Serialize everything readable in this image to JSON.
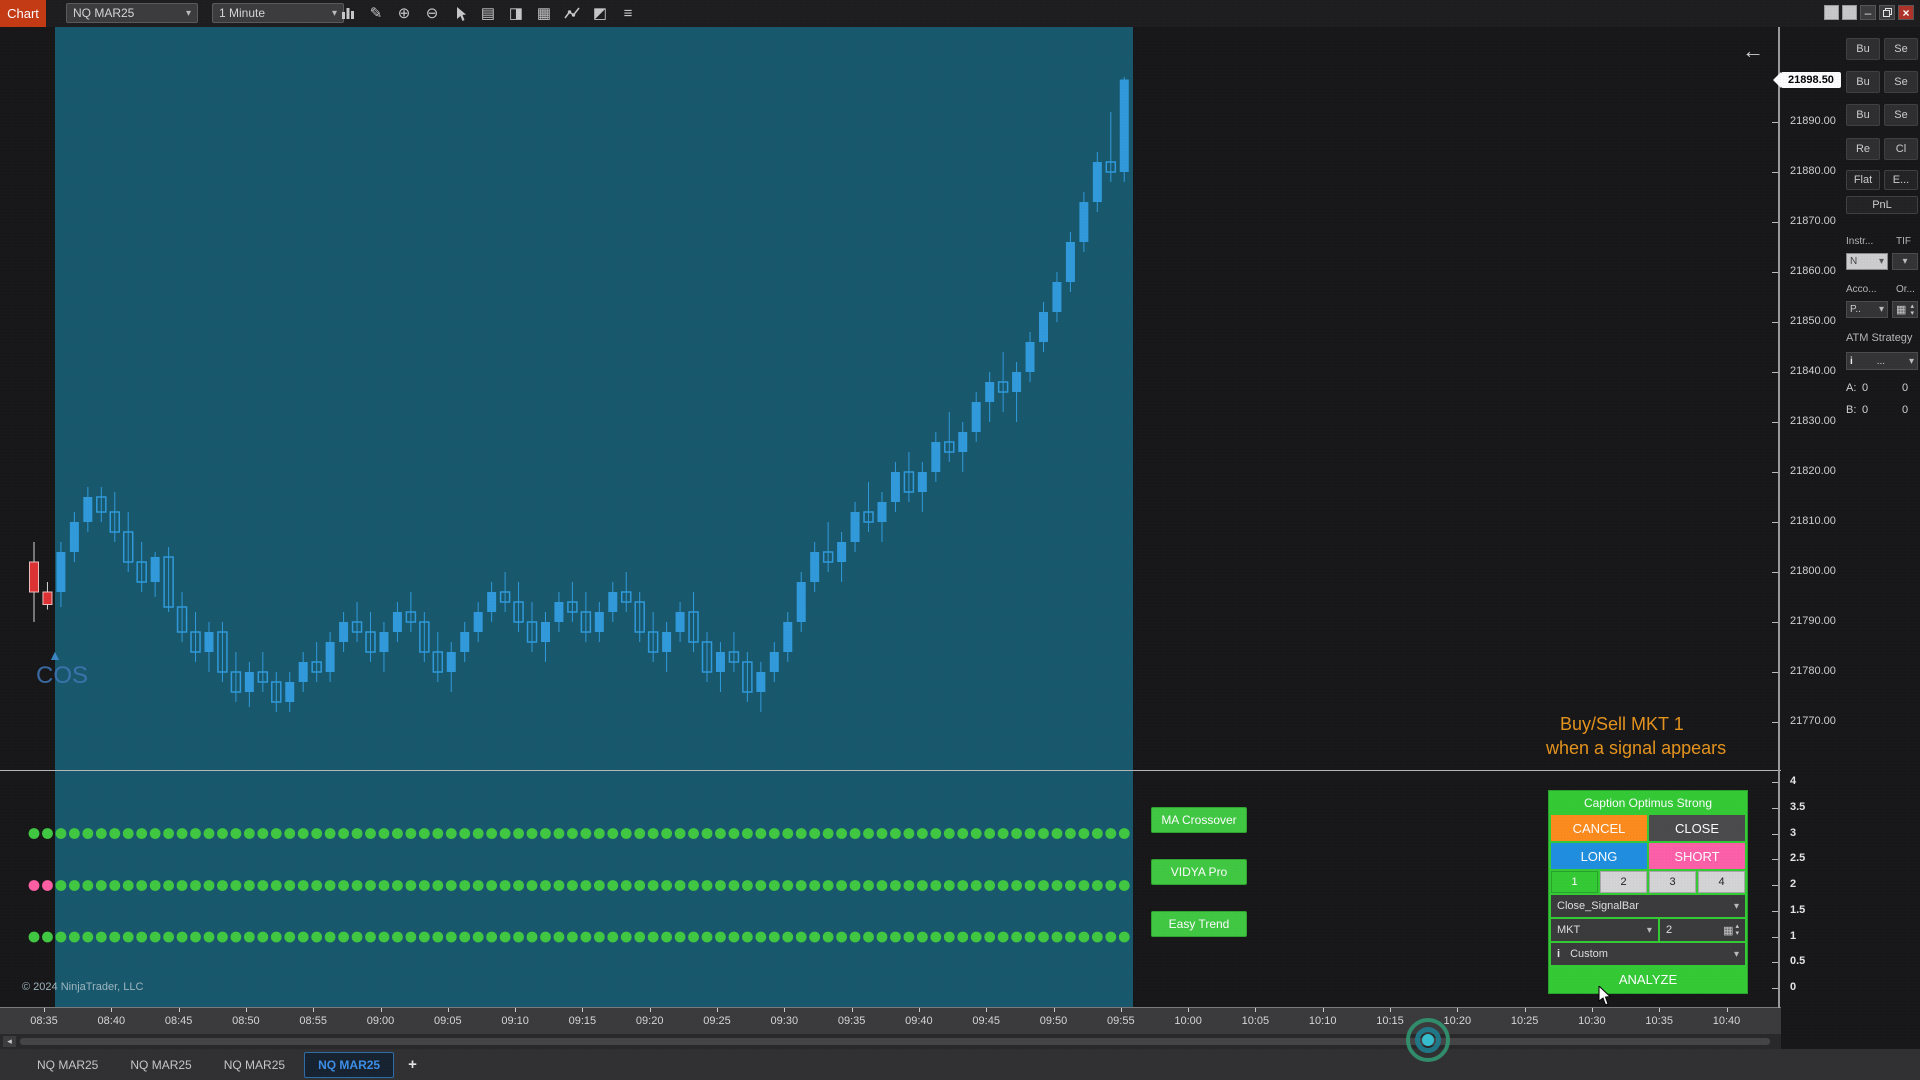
{
  "titlebar": {
    "chart_label": "Chart",
    "instrument_value": "NQ MAR25",
    "interval_value": "1 Minute",
    "icons": [
      {
        "name": "chart-style-icon",
        "glyph": ""
      },
      {
        "name": "drawing-tools-icon",
        "glyph": "✎"
      },
      {
        "name": "zoom-in-icon",
        "glyph": "⊕"
      },
      {
        "name": "zoom-out-icon",
        "glyph": "⊖"
      },
      {
        "name": "cursor-icon",
        "glyph": ""
      },
      {
        "name": "data-box-icon",
        "glyph": "▤"
      },
      {
        "name": "tag-icon",
        "glyph": "◨"
      },
      {
        "name": "chart-trader-icon",
        "glyph": "▦"
      },
      {
        "name": "regression-icon",
        "glyph": ""
      },
      {
        "name": "analyzer-icon",
        "glyph": "◩"
      },
      {
        "name": "indicators-list-icon",
        "glyph": "≡"
      }
    ],
    "window": {
      "minimize": "–",
      "close": "×"
    }
  },
  "price_axis": {
    "last_price": "21898.50",
    "labels": [
      "21890.00",
      "21880.00",
      "21870.00",
      "21860.00",
      "21850.00",
      "21840.00",
      "21830.00",
      "21820.00",
      "21810.00",
      "21800.00",
      "21790.00",
      "21780.00",
      "21770.00"
    ]
  },
  "indicator_axis": {
    "labels": [
      "4",
      "3.5",
      "3",
      "2.5",
      "2",
      "1.5",
      "1",
      "0.5",
      "0"
    ]
  },
  "time_axis": {
    "labels": [
      "08:35",
      "08:40",
      "08:45",
      "08:50",
      "08:55",
      "09:00",
      "09:05",
      "09:10",
      "09:15",
      "09:20",
      "09:25",
      "09:30",
      "09:35",
      "09:40",
      "09:45",
      "09:50",
      "09:55",
      "10:00",
      "10:05",
      "10:10",
      "10:15",
      "10:20",
      "10:25",
      "10:30",
      "10:35",
      "10:40"
    ]
  },
  "tabs": {
    "items": [
      "NQ MAR25",
      "NQ MAR25",
      "NQ MAR25",
      "NQ MAR25"
    ],
    "active_index": 3,
    "add_label": "+"
  },
  "chart": {
    "marker_triangle": "▲",
    "marker_label": "COS",
    "copyright": "© 2024 NinjaTrader, LLC",
    "collapse_arrow": "←",
    "scroll_left_arrow": "◂"
  },
  "note": {
    "line1": "Buy/Sell MKT 1",
    "line2": "when a signal appears"
  },
  "indicators": [
    {
      "label": "MA Crossover",
      "pink_count": 0
    },
    {
      "label": "VIDYA Pro",
      "pink_count": 2
    },
    {
      "label": "Easy Trend",
      "pink_count": 0
    }
  ],
  "right_panel": {
    "buy_label": "Bu",
    "sell_label": "Se",
    "reverse_label": "Re",
    "close_label": "Cl",
    "flat_label": "Flat",
    "exit_label": "E...",
    "pnl_label": "PnL",
    "instrument_label": "Instr...",
    "tif_label": "TIF",
    "instrument_value": "N",
    "account_label": "Acco...",
    "order_label": "Or...",
    "account_value": "P..",
    "atm_label": "ATM Strategy",
    "atm_info": "i",
    "atm_value": "...",
    "row_a_label": "A:",
    "row_a_value1": "0",
    "row_a_value2": "0",
    "row_b_label": "B:",
    "row_b_value1": "0",
    "row_b_value2": "0"
  },
  "trading_panel": {
    "title": "Caption Optimus Strong",
    "cancel_label": "CANCEL",
    "close_label": "CLOSE",
    "long_label": "LONG",
    "short_label": "SHORT",
    "qty_buttons": [
      "1",
      "2",
      "3",
      "4"
    ],
    "active_qty_index": 0,
    "strategy_value": "Close_SignalBar",
    "order_type_value": "MKT",
    "quantity_value": "2",
    "info_icon": "i",
    "template_value": "Custom",
    "analyze_label": "ANALYZE"
  },
  "colors": {
    "session_band": "#17586b",
    "candle_up": "#2f9bdc",
    "candle_down_outline": "#2f9bdc",
    "candle_red": "#e03131",
    "dot_green": "#3fca3f",
    "dot_pink": "#ff5fa2",
    "panel_green": "#33cc33",
    "cancel_orange": "#ff8c1a",
    "long_blue": "#1e8fe0",
    "short_pink": "#ff5fa8",
    "note_orange": "#e8941a",
    "tab_active_blue": "#3b8fe8",
    "chart_button_red": "#c63a10",
    "last_price_badge": "#ffffff"
  },
  "chart_data": {
    "type": "candlestick",
    "instrument": "NQ MAR25",
    "interval": "1 Minute",
    "y_range": [
      21770,
      21900
    ],
    "pre_session_count": 2,
    "session_start_time": "08:36",
    "candles": [
      [
        "08:34",
        21802,
        21806,
        21790,
        21796
      ],
      [
        "08:35",
        21796,
        21798,
        21792.5,
        21793.5
      ],
      [
        "08:36",
        21796,
        21806,
        21793,
        21804
      ],
      [
        "08:37",
        21804,
        21812,
        21802,
        21810
      ],
      [
        "08:38",
        21810,
        21817,
        21808,
        21815
      ],
      [
        "08:39",
        21815,
        21817,
        21810,
        21812
      ],
      [
        "08:40",
        21812,
        21816,
        21806,
        21808
      ],
      [
        "08:41",
        21808,
        21812,
        21800,
        21802
      ],
      [
        "08:42",
        21802,
        21806,
        21796,
        21798
      ],
      [
        "08:43",
        21798,
        21804,
        21795,
        21803
      ],
      [
        "08:44",
        21803,
        21805,
        21792,
        21793
      ],
      [
        "08:45",
        21793,
        21796,
        21786,
        21788
      ],
      [
        "08:46",
        21788,
        21792,
        21782,
        21784
      ],
      [
        "08:47",
        21784,
        21790,
        21780,
        21788
      ],
      [
        "08:48",
        21788,
        21790,
        21778,
        21780
      ],
      [
        "08:49",
        21780,
        21784,
        21774,
        21776
      ],
      [
        "08:50",
        21776,
        21782,
        21773,
        21780
      ],
      [
        "08:51",
        21780,
        21784,
        21776,
        21778
      ],
      [
        "08:52",
        21778,
        21780,
        21772,
        21774
      ],
      [
        "08:53",
        21774,
        21780,
        21772,
        21778
      ],
      [
        "08:54",
        21778,
        21784,
        21776,
        21782
      ],
      [
        "08:55",
        21782,
        21786,
        21778,
        21780
      ],
      [
        "08:56",
        21780,
        21788,
        21778,
        21786
      ],
      [
        "08:57",
        21786,
        21792,
        21784,
        21790
      ],
      [
        "08:58",
        21790,
        21794,
        21786,
        21788
      ],
      [
        "08:59",
        21788,
        21792,
        21782,
        21784
      ],
      [
        "09:00",
        21784,
        21790,
        21780,
        21788
      ],
      [
        "09:01",
        21788,
        21794,
        21786,
        21792
      ],
      [
        "09:02",
        21792,
        21796,
        21788,
        21790
      ],
      [
        "09:03",
        21790,
        21792,
        21782,
        21784
      ],
      [
        "09:04",
        21784,
        21788,
        21778,
        21780
      ],
      [
        "09:05",
        21780,
        21786,
        21776,
        21784
      ],
      [
        "09:06",
        21784,
        21790,
        21782,
        21788
      ],
      [
        "09:07",
        21788,
        21794,
        21786,
        21792
      ],
      [
        "09:08",
        21792,
        21798,
        21790,
        21796
      ],
      [
        "09:09",
        21796,
        21800,
        21792,
        21794
      ],
      [
        "09:10",
        21794,
        21798,
        21788,
        21790
      ],
      [
        "09:11",
        21790,
        21794,
        21784,
        21786
      ],
      [
        "09:12",
        21786,
        21792,
        21782,
        21790
      ],
      [
        "09:13",
        21790,
        21796,
        21788,
        21794
      ],
      [
        "09:14",
        21794,
        21798,
        21790,
        21792
      ],
      [
        "09:15",
        21792,
        21796,
        21786,
        21788
      ],
      [
        "09:16",
        21788,
        21794,
        21786,
        21792
      ],
      [
        "09:17",
        21792,
        21798,
        21790,
        21796
      ],
      [
        "09:18",
        21796,
        21800,
        21792,
        21794
      ],
      [
        "09:19",
        21794,
        21796,
        21786,
        21788
      ],
      [
        "09:20",
        21788,
        21792,
        21782,
        21784
      ],
      [
        "09:21",
        21784,
        21790,
        21780,
        21788
      ],
      [
        "09:22",
        21788,
        21794,
        21786,
        21792
      ],
      [
        "09:23",
        21792,
        21796,
        21784,
        21786
      ],
      [
        "09:24",
        21786,
        21788,
        21778,
        21780
      ],
      [
        "09:25",
        21780,
        21786,
        21776,
        21784
      ],
      [
        "09:26",
        21784,
        21788,
        21780,
        21782
      ],
      [
        "09:27",
        21782,
        21784,
        21774,
        21776
      ],
      [
        "09:28",
        21776,
        21782,
        21772,
        21780
      ],
      [
        "09:29",
        21780,
        21786,
        21778,
        21784
      ],
      [
        "09:30",
        21784,
        21792,
        21782,
        21790
      ],
      [
        "09:31",
        21790,
        21800,
        21788,
        21798
      ],
      [
        "09:32",
        21798,
        21806,
        21796,
        21804
      ],
      [
        "09:33",
        21804,
        21810,
        21800,
        21802
      ],
      [
        "09:34",
        21802,
        21808,
        21798,
        21806
      ],
      [
        "09:35",
        21806,
        21814,
        21804,
        21812
      ],
      [
        "09:36",
        21812,
        21818,
        21808,
        21810
      ],
      [
        "09:37",
        21810,
        21816,
        21806,
        21814
      ],
      [
        "09:38",
        21814,
        21822,
        21812,
        21820
      ],
      [
        "09:39",
        21820,
        21824,
        21814,
        21816
      ],
      [
        "09:40",
        21816,
        21822,
        21812,
        21820
      ],
      [
        "09:41",
        21820,
        21828,
        21818,
        21826
      ],
      [
        "09:42",
        21826,
        21832,
        21822,
        21824
      ],
      [
        "09:43",
        21824,
        21830,
        21820,
        21828
      ],
      [
        "09:44",
        21828,
        21836,
        21826,
        21834
      ],
      [
        "09:45",
        21834,
        21840,
        21830,
        21838
      ],
      [
        "09:46",
        21838,
        21844,
        21832,
        21836
      ],
      [
        "09:47",
        21836,
        21842,
        21830,
        21840
      ],
      [
        "09:48",
        21840,
        21848,
        21838,
        21846
      ],
      [
        "09:49",
        21846,
        21854,
        21844,
        21852
      ],
      [
        "09:50",
        21852,
        21860,
        21850,
        21858
      ],
      [
        "09:51",
        21858,
        21868,
        21856,
        21866
      ],
      [
        "09:52",
        21866,
        21876,
        21864,
        21874
      ],
      [
        "09:53",
        21874,
        21884,
        21872,
        21882
      ],
      [
        "09:54",
        21882,
        21892,
        21878,
        21880
      ],
      [
        "09:55",
        21880,
        21899,
        21878,
        21898.5
      ]
    ]
  }
}
